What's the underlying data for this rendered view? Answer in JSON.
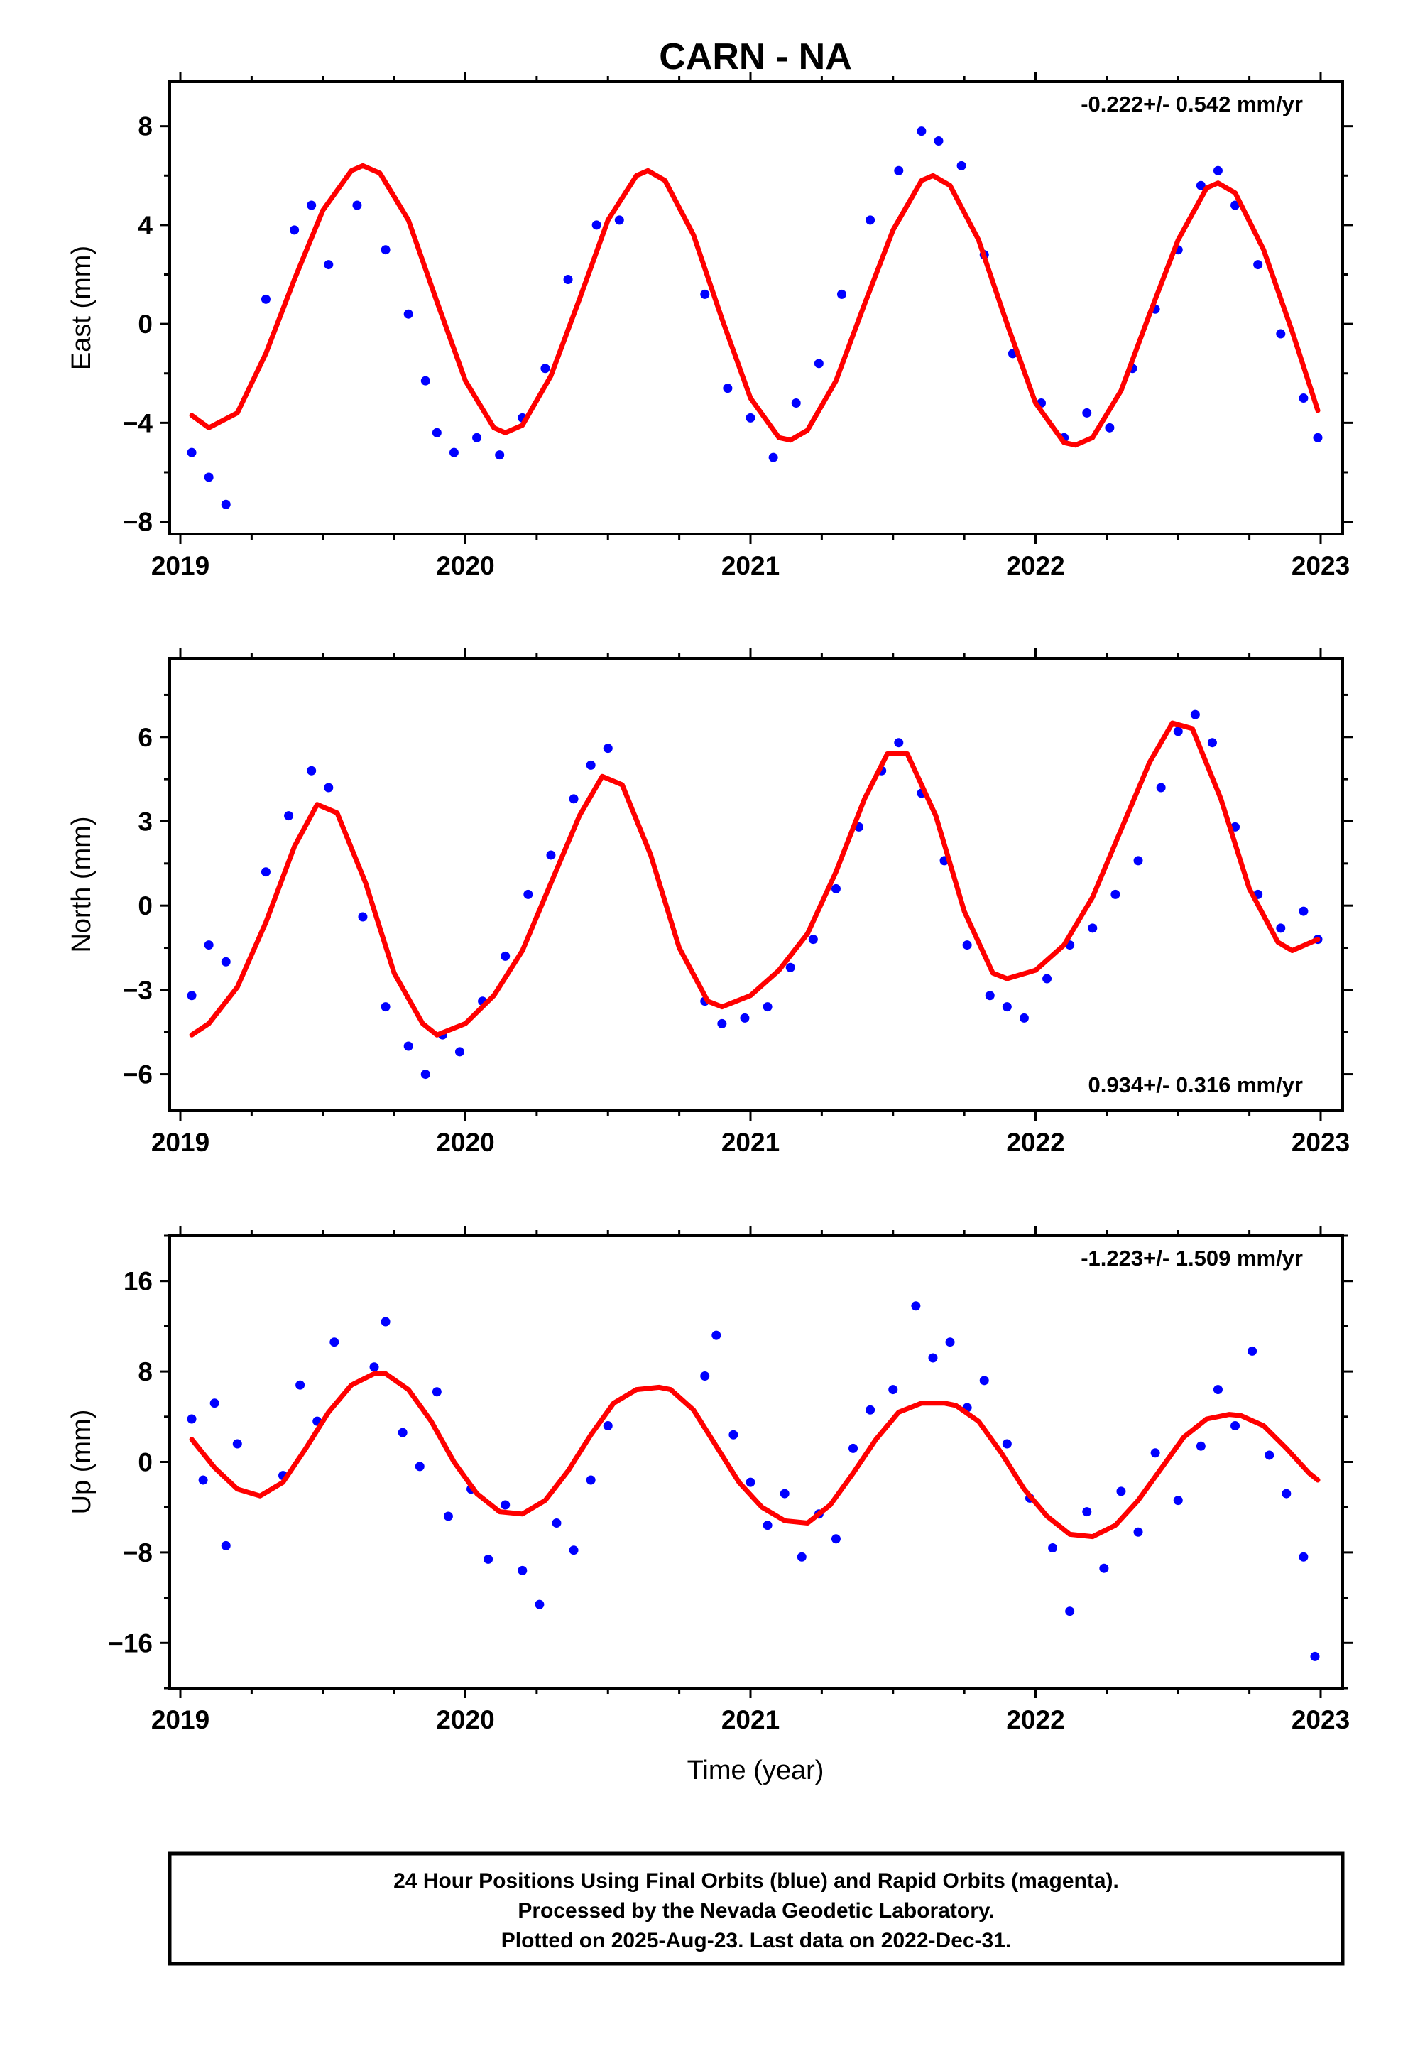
{
  "title": "CARN - NA",
  "xlabel": "Time (year)",
  "footer": {
    "line1": "24 Hour Positions Using Final Orbits (blue) and Rapid Orbits (magenta).",
    "line2": "Processed by the Nevada Geodetic Laboratory.",
    "line3": "Plotted on 2025-Aug-23. Last data on 2022-Dec-31."
  },
  "colors": {
    "observations": "#0000ff",
    "fit": "#ff0000",
    "frame": "#000000"
  },
  "chart_data": [
    {
      "type": "scatter",
      "title": "CARN - NA",
      "ylabel": "East (mm)",
      "xlabel": "",
      "xlim": [
        2019,
        2023
      ],
      "ylim": [
        -8.5,
        9.8
      ],
      "x_ticks": [
        2019,
        2020,
        2021,
        2022,
        2023
      ],
      "y_ticks": [
        -8,
        -4,
        0,
        4,
        8
      ],
      "rate_label": "-0.222+/- 0.542 mm/yr",
      "rate_position": "top-right",
      "grid": false,
      "series": [
        {
          "kind": "points",
          "x": [
            2019.04,
            2019.1,
            2019.16,
            2019.3,
            2019.4,
            2019.46,
            2019.52,
            2019.62,
            2019.72,
            2019.8,
            2019.86,
            2019.9,
            2019.96,
            2020.04,
            2020.12,
            2020.2,
            2020.28,
            2020.36,
            2020.46,
            2020.54,
            2020.84,
            2020.92,
            2021.0,
            2021.08,
            2021.16,
            2021.24,
            2021.32,
            2021.42,
            2021.52,
            2021.6,
            2021.66,
            2021.74,
            2021.82,
            2021.92,
            2022.02,
            2022.1,
            2022.18,
            2022.26,
            2022.34,
            2022.42,
            2022.5,
            2022.58,
            2022.64,
            2022.7,
            2022.78,
            2022.86,
            2022.94,
            2022.99
          ],
          "y": [
            -5.2,
            -6.2,
            -7.3,
            1.0,
            3.8,
            4.8,
            2.4,
            4.8,
            3.0,
            0.4,
            -2.3,
            -4.4,
            -5.2,
            -4.6,
            -5.3,
            -3.8,
            -1.8,
            1.8,
            4.0,
            4.2,
            1.2,
            -2.6,
            -3.8,
            -5.4,
            -3.2,
            -1.6,
            1.2,
            4.2,
            6.2,
            7.8,
            7.4,
            6.4,
            2.8,
            -1.2,
            -3.2,
            -4.6,
            -3.6,
            -4.2,
            -1.8,
            0.6,
            3.0,
            5.6,
            6.2,
            4.8,
            2.4,
            -0.4,
            -3.0,
            -4.6
          ]
        },
        {
          "kind": "fit",
          "x": [
            2019.04,
            2019.1,
            2019.2,
            2019.3,
            2019.4,
            2019.5,
            2019.6,
            2019.64,
            2019.7,
            2019.8,
            2019.9,
            2020.0,
            2020.1,
            2020.14,
            2020.2,
            2020.3,
            2020.4,
            2020.5,
            2020.6,
            2020.64,
            2020.7,
            2020.8,
            2020.9,
            2021.0,
            2021.1,
            2021.14,
            2021.2,
            2021.3,
            2021.4,
            2021.5,
            2021.6,
            2021.64,
            2021.7,
            2021.8,
            2021.9,
            2022.0,
            2022.1,
            2022.14,
            2022.2,
            2022.3,
            2022.4,
            2022.5,
            2022.6,
            2022.64,
            2022.7,
            2022.8,
            2022.9,
            2022.99
          ],
          "y": [
            -3.7,
            -4.2,
            -3.6,
            -1.2,
            1.8,
            4.6,
            6.2,
            6.4,
            6.1,
            4.2,
            0.9,
            -2.3,
            -4.2,
            -4.4,
            -4.1,
            -2.1,
            1.0,
            4.2,
            6.0,
            6.2,
            5.8,
            3.6,
            0.2,
            -3.0,
            -4.6,
            -4.7,
            -4.3,
            -2.3,
            0.8,
            3.8,
            5.8,
            6.0,
            5.6,
            3.4,
            0.0,
            -3.2,
            -4.8,
            -4.9,
            -4.6,
            -2.7,
            0.4,
            3.4,
            5.5,
            5.7,
            5.3,
            3.0,
            -0.3,
            -3.5
          ]
        }
      ]
    },
    {
      "type": "scatter",
      "ylabel": "North (mm)",
      "xlabel": "",
      "xlim": [
        2019,
        2023
      ],
      "ylim": [
        -7.3,
        8.8
      ],
      "x_ticks": [
        2019,
        2020,
        2021,
        2022,
        2023
      ],
      "y_ticks": [
        -6,
        -3,
        0,
        3,
        6
      ],
      "rate_label": "0.934+/- 0.316 mm/yr",
      "rate_position": "bottom-right",
      "grid": false,
      "series": [
        {
          "kind": "points",
          "x": [
            2019.04,
            2019.1,
            2019.16,
            2019.3,
            2019.38,
            2019.46,
            2019.52,
            2019.64,
            2019.72,
            2019.8,
            2019.86,
            2019.92,
            2019.98,
            2020.06,
            2020.14,
            2020.22,
            2020.3,
            2020.38,
            2020.44,
            2020.5,
            2020.84,
            2020.9,
            2020.98,
            2021.06,
            2021.14,
            2021.22,
            2021.3,
            2021.38,
            2021.46,
            2021.52,
            2021.6,
            2021.68,
            2021.76,
            2021.84,
            2021.9,
            2021.96,
            2022.04,
            2022.12,
            2022.2,
            2022.28,
            2022.36,
            2022.44,
            2022.5,
            2022.56,
            2022.62,
            2022.7,
            2022.78,
            2022.86,
            2022.94,
            2022.99
          ],
          "y": [
            -3.2,
            -1.4,
            -2.0,
            1.2,
            3.2,
            4.8,
            4.2,
            -0.4,
            -3.6,
            -5.0,
            -6.0,
            -4.6,
            -5.2,
            -3.4,
            -1.8,
            0.4,
            1.8,
            3.8,
            5.0,
            5.6,
            -3.4,
            -4.2,
            -4.0,
            -3.6,
            -2.2,
            -1.2,
            0.6,
            2.8,
            4.8,
            5.8,
            4.0,
            1.6,
            -1.4,
            -3.2,
            -3.6,
            -4.0,
            -2.6,
            -1.4,
            -0.8,
            0.4,
            1.6,
            4.2,
            6.2,
            6.8,
            5.8,
            2.8,
            0.4,
            -0.8,
            -0.2,
            -1.2
          ]
        },
        {
          "kind": "fit",
          "x": [
            2019.04,
            2019.1,
            2019.2,
            2019.3,
            2019.4,
            2019.48,
            2019.55,
            2019.65,
            2019.75,
            2019.85,
            2019.9,
            2020.0,
            2020.1,
            2020.2,
            2020.3,
            2020.4,
            2020.48,
            2020.55,
            2020.65,
            2020.75,
            2020.85,
            2020.9,
            2021.0,
            2021.1,
            2021.2,
            2021.3,
            2021.4,
            2021.48,
            2021.55,
            2021.65,
            2021.75,
            2021.85,
            2021.9,
            2022.0,
            2022.1,
            2022.2,
            2022.3,
            2022.4,
            2022.48,
            2022.55,
            2022.65,
            2022.75,
            2022.85,
            2022.9,
            2022.99
          ],
          "y": [
            -4.6,
            -4.2,
            -2.9,
            -0.6,
            2.1,
            3.6,
            3.3,
            0.8,
            -2.4,
            -4.2,
            -4.6,
            -4.2,
            -3.2,
            -1.6,
            0.8,
            3.2,
            4.6,
            4.3,
            1.8,
            -1.5,
            -3.4,
            -3.6,
            -3.2,
            -2.3,
            -1.0,
            1.2,
            3.8,
            5.4,
            5.4,
            3.2,
            -0.2,
            -2.4,
            -2.6,
            -2.3,
            -1.4,
            0.3,
            2.7,
            5.1,
            6.5,
            6.3,
            3.8,
            0.6,
            -1.3,
            -1.6,
            -1.2
          ]
        }
      ]
    },
    {
      "type": "scatter",
      "ylabel": "Up (mm)",
      "xlabel": "Time (year)",
      "xlim": [
        2019,
        2023
      ],
      "ylim": [
        -20,
        20
      ],
      "x_ticks": [
        2019,
        2020,
        2021,
        2022,
        2023
      ],
      "y_ticks": [
        -16,
        -8,
        0,
        8,
        16
      ],
      "rate_label": "-1.223+/- 1.509 mm/yr",
      "rate_position": "top-right",
      "grid": false,
      "series": [
        {
          "kind": "points",
          "x": [
            2019.04,
            2019.08,
            2019.12,
            2019.16,
            2019.2,
            2019.36,
            2019.42,
            2019.48,
            2019.54,
            2019.68,
            2019.72,
            2019.78,
            2019.84,
            2019.9,
            2019.94,
            2020.02,
            2020.08,
            2020.14,
            2020.2,
            2020.26,
            2020.32,
            2020.38,
            2020.44,
            2020.5,
            2020.84,
            2020.88,
            2020.94,
            2021.0,
            2021.06,
            2021.12,
            2021.18,
            2021.24,
            2021.3,
            2021.36,
            2021.42,
            2021.5,
            2021.58,
            2021.64,
            2021.7,
            2021.76,
            2021.82,
            2021.9,
            2021.98,
            2022.06,
            2022.12,
            2022.18,
            2022.24,
            2022.3,
            2022.36,
            2022.42,
            2022.5,
            2022.58,
            2022.64,
            2022.7,
            2022.76,
            2022.82,
            2022.88,
            2022.94,
            2022.98
          ],
          "y": [
            3.8,
            -1.6,
            5.2,
            -7.4,
            1.6,
            -1.2,
            6.8,
            3.6,
            10.6,
            8.4,
            12.4,
            2.6,
            -0.4,
            6.2,
            -4.8,
            -2.4,
            -8.6,
            -3.8,
            -9.6,
            -12.6,
            -5.4,
            -7.8,
            -1.6,
            3.2,
            7.6,
            11.2,
            2.4,
            -1.8,
            -5.6,
            -2.8,
            -8.4,
            -4.6,
            -6.8,
            1.2,
            4.6,
            6.4,
            13.8,
            9.2,
            10.6,
            4.8,
            7.2,
            1.6,
            -3.2,
            -7.6,
            -13.2,
            -4.4,
            -9.4,
            -2.6,
            -6.2,
            0.8,
            -3.4,
            1.4,
            6.4,
            3.2,
            9.8,
            0.6,
            -2.8,
            -8.4,
            -17.2
          ]
        },
        {
          "kind": "fit",
          "x": [
            2019.04,
            2019.12,
            2019.2,
            2019.28,
            2019.36,
            2019.44,
            2019.52,
            2019.6,
            2019.68,
            2019.72,
            2019.8,
            2019.88,
            2019.96,
            2020.04,
            2020.12,
            2020.2,
            2020.28,
            2020.36,
            2020.44,
            2020.52,
            2020.6,
            2020.68,
            2020.72,
            2020.8,
            2020.88,
            2020.96,
            2021.04,
            2021.12,
            2021.2,
            2021.28,
            2021.36,
            2021.44,
            2021.52,
            2021.6,
            2021.68,
            2021.72,
            2021.8,
            2021.88,
            2021.96,
            2022.04,
            2022.12,
            2022.2,
            2022.28,
            2022.36,
            2022.44,
            2022.52,
            2022.6,
            2022.68,
            2022.72,
            2022.8,
            2022.88,
            2022.96,
            2022.99
          ],
          "y": [
            2.0,
            -0.5,
            -2.4,
            -3.0,
            -1.8,
            1.2,
            4.4,
            6.8,
            7.8,
            7.8,
            6.4,
            3.6,
            0.0,
            -2.8,
            -4.4,
            -4.6,
            -3.4,
            -0.8,
            2.4,
            5.2,
            6.4,
            6.6,
            6.4,
            4.6,
            1.4,
            -1.8,
            -4.0,
            -5.2,
            -5.4,
            -3.8,
            -1.0,
            2.0,
            4.4,
            5.2,
            5.2,
            5.0,
            3.6,
            0.8,
            -2.4,
            -4.8,
            -6.4,
            -6.6,
            -5.6,
            -3.4,
            -0.6,
            2.2,
            3.8,
            4.2,
            4.1,
            3.2,
            1.2,
            -1.0,
            -1.6
          ]
        }
      ]
    }
  ]
}
